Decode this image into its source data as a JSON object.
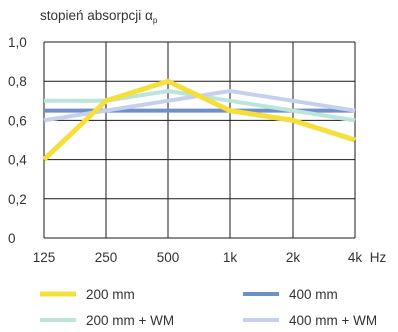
{
  "chart_data": {
    "type": "line",
    "ylabel": "stopień absorpcji α",
    "ylabel_subscript": "p",
    "xlabel": "Hz",
    "categories": [
      "125",
      "250",
      "500",
      "1k",
      "2k",
      "4k"
    ],
    "ylim": [
      0,
      1.0
    ],
    "yticks": [
      0,
      0.2,
      0.4,
      0.6,
      0.8,
      1.0
    ],
    "ytick_labels": [
      "0",
      "0,2",
      "0,4",
      "0,6",
      "0,8",
      "1,0"
    ],
    "grid": true,
    "legend_position": "bottom",
    "series": [
      {
        "name": "200 mm",
        "color": "#f5df3b",
        "values": [
          0.4,
          0.7,
          0.8,
          0.65,
          0.6,
          0.5
        ]
      },
      {
        "name": "400 mm",
        "color": "#6f8fc7",
        "values": [
          0.65,
          0.65,
          0.65,
          0.65,
          0.65,
          0.65
        ]
      },
      {
        "name": "200 mm + WM",
        "color": "#bde4da",
        "values": [
          0.7,
          0.7,
          0.75,
          0.7,
          0.65,
          0.6
        ]
      },
      {
        "name": "400 mm + WM",
        "color": "#c4d0ec",
        "values": [
          0.6,
          0.65,
          0.7,
          0.75,
          0.7,
          0.65
        ]
      }
    ]
  }
}
